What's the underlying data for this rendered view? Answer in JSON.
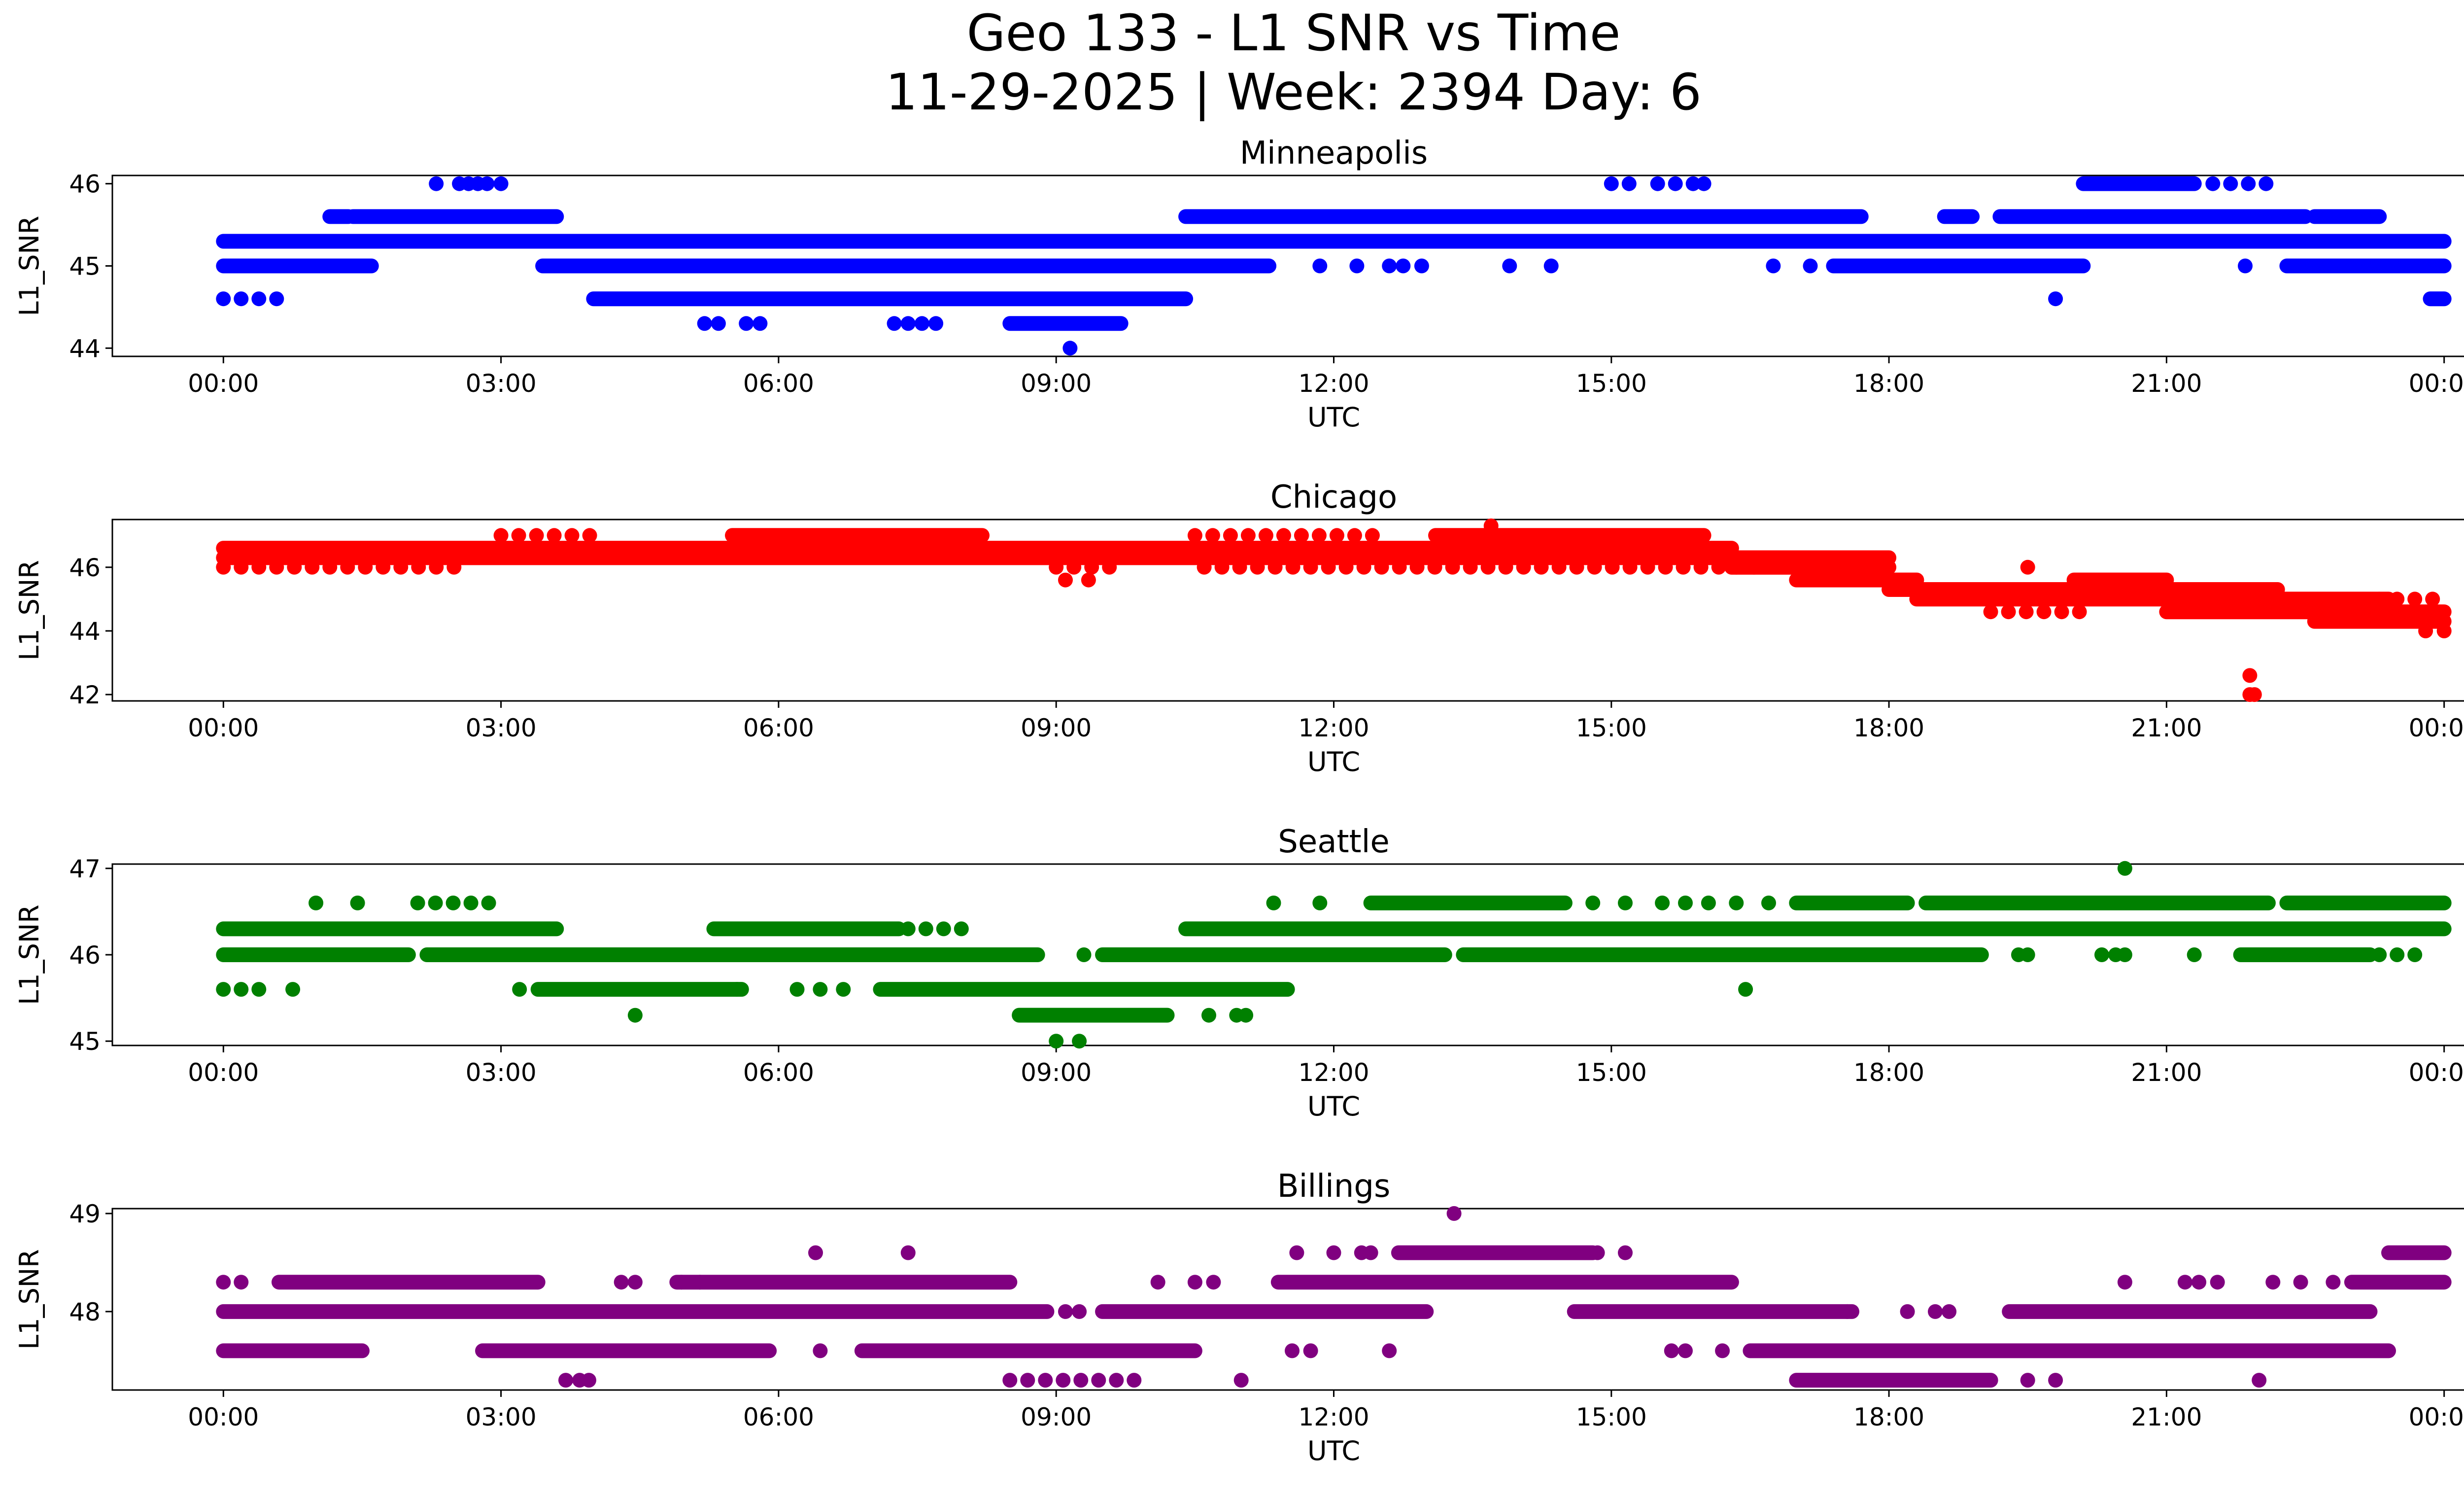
{
  "figure": {
    "title_line1": "Geo 133 - L1 SNR vs Time",
    "title_line2": "11-29-2025 | Week: 2394 Day: 6"
  },
  "chart_data": [
    {
      "type": "scatter",
      "title": "Minneapolis",
      "xlabel": "UTC",
      "ylabel": "L1_SNR",
      "color": "#0000ff",
      "x_ticks": [
        "00:00",
        "03:00",
        "06:00",
        "09:00",
        "12:00",
        "15:00",
        "18:00",
        "21:00",
        "00:00"
      ],
      "x_tick_hours": [
        0,
        3,
        6,
        9,
        12,
        15,
        18,
        21,
        24
      ],
      "y_ticks": [
        44,
        45,
        46
      ],
      "ylim": [
        43.9,
        46.1
      ],
      "xlim_hours": [
        -1.2,
        25.2
      ],
      "grid": false,
      "segments": [
        {
          "y": 45.3,
          "start": 0.0,
          "end": 24.0
        },
        {
          "y": 45.0,
          "start": 0.0,
          "end": 1.6
        },
        {
          "y": 44.6,
          "start": 0.0,
          "end": 0.6,
          "sparse": true
        },
        {
          "y": 45.6,
          "start": 1.15,
          "end": 1.35
        },
        {
          "y": 45.6,
          "start": 1.4,
          "end": 3.6
        },
        {
          "y": 45.0,
          "start": 3.45,
          "end": 10.5
        },
        {
          "y": 44.6,
          "start": 4.0,
          "end": 10.4
        },
        {
          "y": 44.3,
          "start": 8.5,
          "end": 9.7
        },
        {
          "y": 45.6,
          "start": 10.4,
          "end": 17.7
        },
        {
          "y": 45.0,
          "start": 9.3,
          "end": 11.3
        },
        {
          "y": 45.0,
          "start": 17.4,
          "end": 20.1
        },
        {
          "y": 45.6,
          "start": 18.6,
          "end": 18.9
        },
        {
          "y": 45.6,
          "start": 19.2,
          "end": 22.5
        },
        {
          "y": 45.6,
          "start": 22.6,
          "end": 23.3
        },
        {
          "y": 45.0,
          "start": 22.3,
          "end": 24.0
        },
        {
          "y": 46.0,
          "start": 15.0,
          "end": 15.3,
          "sparse": true
        },
        {
          "y": 46.0,
          "start": 15.5,
          "end": 15.9,
          "sparse": true
        },
        {
          "y": 46.0,
          "start": 20.1,
          "end": 21.3
        },
        {
          "y": 46.0,
          "start": 21.5,
          "end": 22.2,
          "sparse": true
        },
        {
          "y": 44.6,
          "start": 23.85,
          "end": 24.0
        }
      ],
      "points": [
        [
          2.3,
          46.0
        ],
        [
          2.55,
          46.0
        ],
        [
          2.65,
          46.0
        ],
        [
          2.75,
          46.0
        ],
        [
          2.85,
          46.0
        ],
        [
          3.0,
          46.0
        ],
        [
          4.65,
          45.3
        ],
        [
          5.2,
          44.3
        ],
        [
          5.35,
          44.3
        ],
        [
          5.65,
          44.3
        ],
        [
          5.8,
          44.3
        ],
        [
          6.85,
          45.3
        ],
        [
          7.0,
          45.3
        ],
        [
          7.3,
          45.3
        ],
        [
          7.65,
          45.3
        ],
        [
          8.25,
          45.3
        ],
        [
          7.25,
          44.3
        ],
        [
          7.4,
          44.3
        ],
        [
          7.55,
          44.3
        ],
        [
          7.7,
          44.3
        ],
        [
          9.15,
          44.0
        ],
        [
          11.85,
          45.0
        ],
        [
          12.25,
          45.0
        ],
        [
          12.6,
          45.0
        ],
        [
          12.75,
          45.0
        ],
        [
          12.95,
          45.0
        ],
        [
          13.9,
          45.0
        ],
        [
          14.35,
          45.0
        ],
        [
          16.0,
          46.0
        ],
        [
          16.75,
          45.0
        ],
        [
          17.15,
          45.0
        ],
        [
          19.8,
          44.6
        ],
        [
          21.85,
          45.0
        ]
      ]
    },
    {
      "type": "scatter",
      "title": "Chicago",
      "xlabel": "UTC",
      "ylabel": "L1_SNR",
      "color": "#ff0000",
      "x_ticks": [
        "00:00",
        "03:00",
        "06:00",
        "09:00",
        "12:00",
        "15:00",
        "18:00",
        "21:00",
        "00:00"
      ],
      "x_tick_hours": [
        0,
        3,
        6,
        9,
        12,
        15,
        18,
        21,
        24
      ],
      "y_ticks": [
        42,
        44,
        46
      ],
      "ylim": [
        41.8,
        47.5
      ],
      "xlim_hours": [
        -1.2,
        25.2
      ],
      "grid": false,
      "segments": [
        {
          "y": 46.6,
          "start": 0.0,
          "end": 3.0
        },
        {
          "y": 46.3,
          "start": 0.0,
          "end": 9.0
        },
        {
          "y": 46.0,
          "start": 0.0,
          "end": 2.6,
          "sparse": true
        },
        {
          "y": 47.0,
          "start": 3.0,
          "end": 4.0,
          "sparse": true
        },
        {
          "y": 46.6,
          "start": 3.0,
          "end": 16.3
        },
        {
          "y": 47.0,
          "start": 5.5,
          "end": 8.2
        },
        {
          "y": 46.0,
          "start": 9.0,
          "end": 9.6,
          "sparse": true
        },
        {
          "y": 46.3,
          "start": 9.0,
          "end": 16.5
        },
        {
          "y": 47.0,
          "start": 10.5,
          "end": 12.5,
          "sparse": true
        },
        {
          "y": 47.0,
          "start": 13.1,
          "end": 16.0
        },
        {
          "y": 46.0,
          "start": 10.6,
          "end": 16.6,
          "sparse": true
        },
        {
          "y": 46.3,
          "start": 16.0,
          "end": 18.0
        },
        {
          "y": 46.0,
          "start": 16.3,
          "end": 18.0
        },
        {
          "y": 45.6,
          "start": 17.0,
          "end": 18.3
        },
        {
          "y": 45.3,
          "start": 18.0,
          "end": 21.0
        },
        {
          "y": 45.0,
          "start": 18.3,
          "end": 21.0
        },
        {
          "y": 45.6,
          "start": 20.0,
          "end": 21.0
        },
        {
          "y": 44.6,
          "start": 19.1,
          "end": 20.2,
          "sparse": true
        },
        {
          "y": 45.3,
          "start": 21.0,
          "end": 22.2
        },
        {
          "y": 45.0,
          "start": 21.0,
          "end": 23.4
        },
        {
          "y": 44.6,
          "start": 21.0,
          "end": 24.0
        },
        {
          "y": 44.3,
          "start": 22.6,
          "end": 24.0
        },
        {
          "y": 45.0,
          "start": 23.3,
          "end": 24.0,
          "sparse": true
        }
      ],
      "points": [
        [
          13.7,
          47.3
        ],
        [
          9.1,
          45.6
        ],
        [
          9.35,
          45.6
        ],
        [
          19.5,
          46.0
        ],
        [
          23.8,
          44.0
        ],
        [
          24.0,
          44.0
        ],
        [
          21.9,
          42.6
        ],
        [
          21.9,
          42.0
        ],
        [
          21.95,
          42.0
        ]
      ]
    },
    {
      "type": "scatter",
      "title": "Seattle",
      "xlabel": "UTC",
      "ylabel": "L1_SNR",
      "color": "#008000",
      "x_ticks": [
        "00:00",
        "03:00",
        "06:00",
        "09:00",
        "12:00",
        "15:00",
        "18:00",
        "21:00",
        "00:00"
      ],
      "x_tick_hours": [
        0,
        3,
        6,
        9,
        12,
        15,
        18,
        21,
        24
      ],
      "y_ticks": [
        45,
        46,
        47
      ],
      "ylim": [
        44.95,
        47.05
      ],
      "xlim_hours": [
        -1.2,
        25.2
      ],
      "grid": false,
      "segments": [
        {
          "y": 46.3,
          "start": 0.0,
          "end": 3.6
        },
        {
          "y": 46.0,
          "start": 0.0,
          "end": 2.0
        },
        {
          "y": 45.6,
          "start": 0.0,
          "end": 0.5,
          "sparse": true
        },
        {
          "y": 46.0,
          "start": 2.2,
          "end": 8.8
        },
        {
          "y": 46.6,
          "start": 2.1,
          "end": 2.9,
          "sparse": true
        },
        {
          "y": 45.6,
          "start": 3.4,
          "end": 5.6
        },
        {
          "y": 46.3,
          "start": 5.3,
          "end": 7.3
        },
        {
          "y": 46.3,
          "start": 7.4,
          "end": 8.0,
          "sparse": true
        },
        {
          "y": 45.6,
          "start": 7.1,
          "end": 11.5
        },
        {
          "y": 45.3,
          "start": 8.6,
          "end": 10.2
        },
        {
          "y": 46.0,
          "start": 9.5,
          "end": 13.2
        },
        {
          "y": 46.3,
          "start": 10.4,
          "end": 24.0
        },
        {
          "y": 46.6,
          "start": 12.4,
          "end": 14.5
        },
        {
          "y": 46.6,
          "start": 17.0,
          "end": 18.2
        },
        {
          "y": 46.6,
          "start": 18.4,
          "end": 22.1
        },
        {
          "y": 46.6,
          "start": 22.3,
          "end": 24.0
        },
        {
          "y": 46.0,
          "start": 13.4,
          "end": 19.0
        },
        {
          "y": 46.0,
          "start": 21.8,
          "end": 23.2
        },
        {
          "y": 46.0,
          "start": 23.3,
          "end": 23.7,
          "sparse": true
        }
      ],
      "points": [
        [
          1.0,
          46.6
        ],
        [
          1.45,
          46.6
        ],
        [
          0.75,
          45.6
        ],
        [
          3.2,
          45.6
        ],
        [
          4.45,
          45.3
        ],
        [
          5.55,
          45.6
        ],
        [
          6.2,
          45.6
        ],
        [
          6.45,
          45.6
        ],
        [
          6.7,
          45.6
        ],
        [
          9.0,
          45.0
        ],
        [
          9.25,
          45.0
        ],
        [
          9.3,
          46.0
        ],
        [
          10.65,
          45.3
        ],
        [
          10.95,
          45.3
        ],
        [
          11.05,
          45.3
        ],
        [
          11.35,
          46.6
        ],
        [
          11.85,
          46.6
        ],
        [
          14.8,
          46.6
        ],
        [
          15.15,
          46.6
        ],
        [
          15.55,
          46.6
        ],
        [
          15.8,
          46.6
        ],
        [
          16.05,
          46.6
        ],
        [
          16.35,
          46.6
        ],
        [
          16.7,
          46.6
        ],
        [
          16.45,
          45.6
        ],
        [
          19.4,
          46.0
        ],
        [
          19.5,
          46.0
        ],
        [
          20.3,
          46.0
        ],
        [
          20.45,
          46.0
        ],
        [
          20.55,
          46.0
        ],
        [
          21.3,
          46.0
        ],
        [
          20.55,
          47.0
        ]
      ]
    },
    {
      "type": "scatter",
      "title": "Billings",
      "xlabel": "UTC",
      "ylabel": "L1_SNR",
      "color": "#800080",
      "x_ticks": [
        "00:00",
        "03:00",
        "06:00",
        "09:00",
        "12:00",
        "15:00",
        "18:00",
        "21:00",
        "00:00"
      ],
      "x_tick_hours": [
        0,
        3,
        6,
        9,
        12,
        15,
        18,
        21,
        24
      ],
      "y_ticks": [
        48,
        49
      ],
      "ylim": [
        47.2,
        49.05
      ],
      "xlim_hours": [
        -1.2,
        25.2
      ],
      "grid": false,
      "segments": [
        {
          "y": 48.3,
          "start": 0.0,
          "end": 0.2,
          "sparse": true
        },
        {
          "y": 48.3,
          "start": 0.6,
          "end": 3.4
        },
        {
          "y": 48.0,
          "start": 0.0,
          "end": 8.9
        },
        {
          "y": 47.6,
          "start": 0.0,
          "end": 1.5
        },
        {
          "y": 47.6,
          "start": 2.8,
          "end": 5.9
        },
        {
          "y": 48.3,
          "start": 4.9,
          "end": 8.5
        },
        {
          "y": 47.6,
          "start": 6.9,
          "end": 10.5
        },
        {
          "y": 47.3,
          "start": 8.5,
          "end": 10.0,
          "sparse": true
        },
        {
          "y": 48.0,
          "start": 9.5,
          "end": 13.0
        },
        {
          "y": 48.3,
          "start": 11.4,
          "end": 16.3
        },
        {
          "y": 48.6,
          "start": 12.7,
          "end": 14.8
        },
        {
          "y": 48.0,
          "start": 14.6,
          "end": 17.6
        },
        {
          "y": 48.0,
          "start": 19.3,
          "end": 23.2
        },
        {
          "y": 47.6,
          "start": 16.5,
          "end": 23.4
        },
        {
          "y": 47.3,
          "start": 17.0,
          "end": 19.1
        },
        {
          "y": 48.3,
          "start": 23.0,
          "end": 24.0
        },
        {
          "y": 48.6,
          "start": 23.4,
          "end": 24.0
        }
      ],
      "points": [
        [
          3.7,
          47.3
        ],
        [
          3.85,
          47.3
        ],
        [
          3.95,
          47.3
        ],
        [
          4.3,
          48.3
        ],
        [
          4.45,
          48.3
        ],
        [
          4.95,
          48.3
        ],
        [
          5.15,
          48.3
        ],
        [
          6.4,
          48.6
        ],
        [
          6.45,
          47.6
        ],
        [
          7.4,
          48.6
        ],
        [
          9.1,
          48.0
        ],
        [
          9.25,
          48.0
        ],
        [
          10.1,
          48.3
        ],
        [
          10.5,
          48.3
        ],
        [
          10.7,
          48.3
        ],
        [
          11.0,
          47.3
        ],
        [
          11.55,
          47.6
        ],
        [
          11.75,
          47.6
        ],
        [
          11.6,
          48.6
        ],
        [
          12.0,
          48.6
        ],
        [
          12.3,
          48.6
        ],
        [
          12.4,
          48.6
        ],
        [
          12.6,
          47.6
        ],
        [
          13.3,
          49.0
        ],
        [
          14.6,
          48.6
        ],
        [
          14.85,
          48.6
        ],
        [
          15.15,
          48.6
        ],
        [
          15.65,
          47.6
        ],
        [
          15.8,
          47.6
        ],
        [
          16.2,
          47.6
        ],
        [
          17.55,
          48.0
        ],
        [
          18.2,
          48.0
        ],
        [
          18.5,
          48.0
        ],
        [
          18.65,
          48.0
        ],
        [
          19.5,
          47.3
        ],
        [
          19.8,
          47.3
        ],
        [
          20.55,
          48.3
        ],
        [
          21.2,
          48.3
        ],
        [
          21.35,
          48.3
        ],
        [
          21.55,
          48.3
        ],
        [
          22.0,
          47.3
        ],
        [
          22.15,
          48.3
        ],
        [
          22.45,
          48.3
        ],
        [
          22.8,
          48.3
        ]
      ]
    }
  ]
}
